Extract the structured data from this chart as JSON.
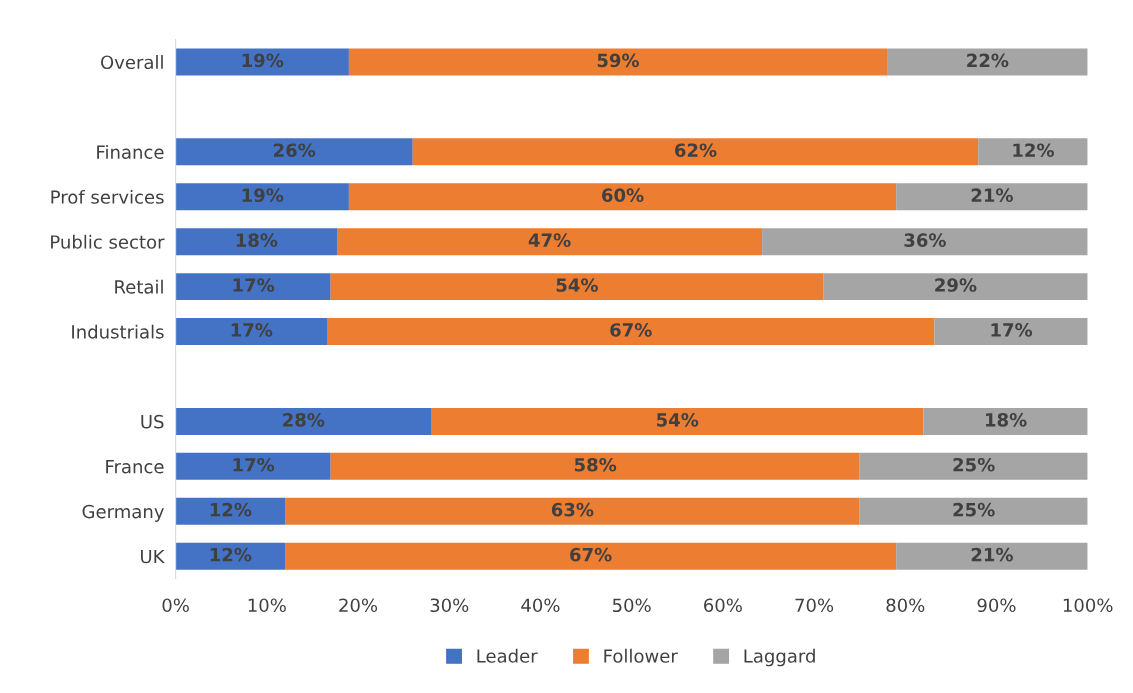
{
  "chart_data": {
    "type": "bar",
    "orientation": "horizontal",
    "stacked": true,
    "categories": [
      "Overall",
      null,
      "Finance",
      "Prof services",
      "Public sector",
      "Retail",
      "Industrials",
      null,
      "US",
      "France",
      "Germany",
      "UK"
    ],
    "series": [
      {
        "name": "Leader",
        "color": "#4472c4",
        "values": [
          19,
          null,
          26,
          19,
          17.7,
          17,
          16.6,
          null,
          28,
          17,
          12,
          12
        ],
        "value_labels": [
          "19%",
          null,
          "26%",
          "19%",
          "18%",
          "17%",
          "17%",
          null,
          "28%",
          "17%",
          "12%",
          "12%"
        ]
      },
      {
        "name": "Follower",
        "color": "#ed7d31",
        "values": [
          59,
          null,
          62,
          60,
          46.6,
          54,
          66.6,
          null,
          54,
          58,
          63,
          67
        ],
        "value_labels": [
          "59%",
          null,
          "62%",
          "60%",
          "47%",
          "54%",
          "67%",
          null,
          "54%",
          "58%",
          "63%",
          "67%"
        ]
      },
      {
        "name": "Laggard",
        "color": "#a5a5a5",
        "values": [
          22,
          null,
          12,
          21,
          35.7,
          29,
          16.8,
          null,
          18,
          25,
          25,
          21
        ],
        "value_labels": [
          "22%",
          null,
          "12%",
          "21%",
          "36%",
          "29%",
          "17%",
          null,
          "18%",
          "25%",
          "25%",
          "21%"
        ]
      }
    ],
    "xlim": [
      0,
      100
    ],
    "xticks": [
      {
        "value": 0,
        "label": "0%"
      },
      {
        "value": 10,
        "label": "10%"
      },
      {
        "value": 20,
        "label": "20%"
      },
      {
        "value": 30,
        "label": "30%"
      },
      {
        "value": 40,
        "label": "40%"
      },
      {
        "value": 50,
        "label": "50%"
      },
      {
        "value": 60,
        "label": "60%"
      },
      {
        "value": 70,
        "label": "70%"
      },
      {
        "value": 80,
        "label": "80%"
      },
      {
        "value": 90,
        "label": "90%"
      },
      {
        "value": 100,
        "label": "100%"
      }
    ],
    "grid": false,
    "legend": "bottom"
  }
}
